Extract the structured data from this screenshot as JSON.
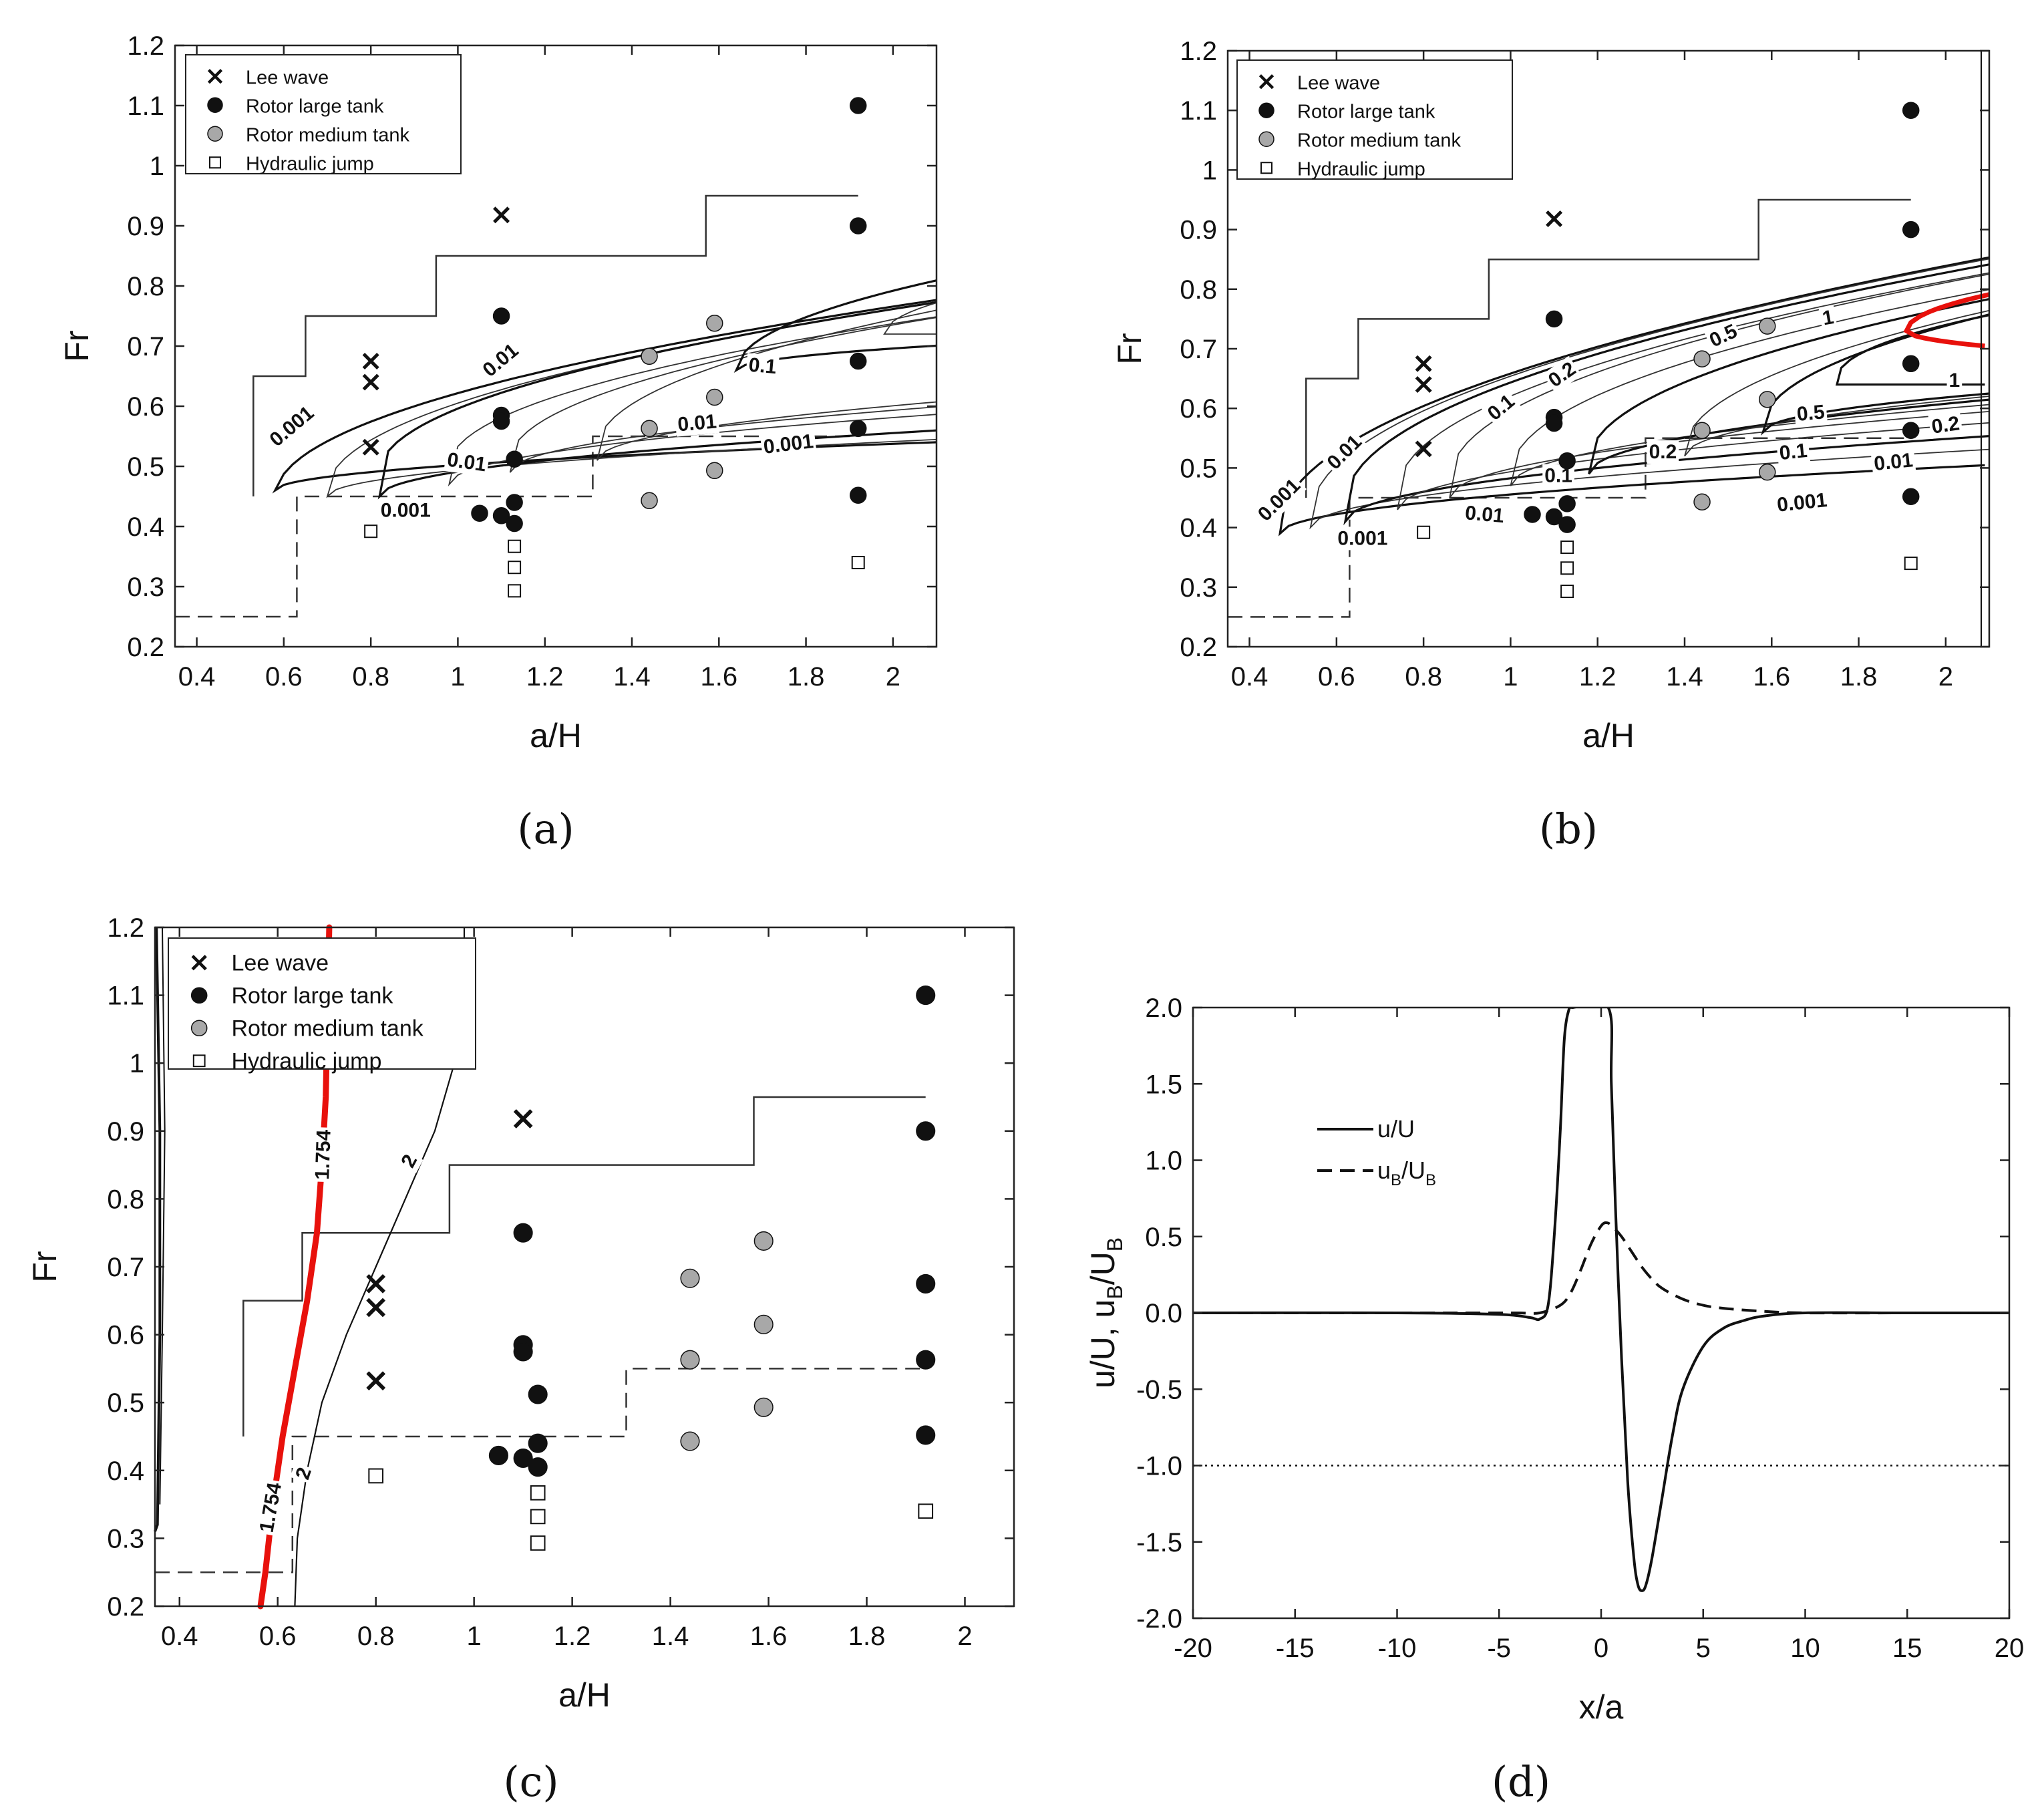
{
  "chart_data": [
    {
      "id": "a",
      "type": "scatter",
      "panel_label": "(a)",
      "xlabel": "a/H",
      "ylabel": "Fr",
      "xlim": [
        0.35,
        2.1
      ],
      "ylim": [
        0.2,
        1.2
      ],
      "xticks": [
        "0.4",
        "0.6",
        "0.8",
        "1",
        "1.2",
        "1.4",
        "1.6",
        "1.8",
        "2"
      ],
      "yticks": [
        "0.2",
        "0.3",
        "0.4",
        "0.5",
        "0.6",
        "0.7",
        "0.8",
        "0.9",
        "1",
        "1.1",
        "1.2"
      ],
      "contour_labels": [
        "0.001",
        "0.01",
        "0.1",
        "0.01",
        "0.01",
        "0.001",
        "0.001"
      ]
    },
    {
      "id": "b",
      "type": "scatter",
      "panel_label": "(b)",
      "xlabel": "a/H",
      "ylabel": "Fr",
      "xlim": [
        0.35,
        2.1
      ],
      "ylim": [
        0.2,
        1.2
      ],
      "xticks": [
        "0.4",
        "0.6",
        "0.8",
        "1",
        "1.2",
        "1.4",
        "1.6",
        "1.8",
        "2"
      ],
      "yticks": [
        "0.2",
        "0.3",
        "0.4",
        "0.5",
        "0.6",
        "0.7",
        "0.8",
        "0.9",
        "1",
        "1.1",
        "1.2"
      ],
      "contour_labels": [
        "0.001",
        "0.01",
        "0.1",
        "0.2",
        "0.5",
        "1",
        "1",
        "0.5",
        "0.2",
        "0.2",
        "0.1",
        "0.1",
        "0.01",
        "0.01",
        "0.001",
        "0.001"
      ]
    },
    {
      "id": "c",
      "type": "scatter",
      "panel_label": "(c)",
      "xlabel": "a/H",
      "ylabel": "Fr",
      "xlim": [
        0.35,
        2.1
      ],
      "ylim": [
        0.2,
        1.2
      ],
      "xticks": [
        "0.4",
        "0.6",
        "0.8",
        "1",
        "1.2",
        "1.4",
        "1.6",
        "1.8",
        "2"
      ],
      "yticks": [
        "0.2",
        "0.3",
        "0.4",
        "0.5",
        "0.6",
        "0.7",
        "0.8",
        "0.9",
        "1",
        "1.1",
        "1.2"
      ],
      "contour_labels": [
        "1.754",
        "1.754",
        "2",
        "2"
      ]
    },
    {
      "id": "d",
      "type": "line",
      "panel_label": "(d)",
      "xlabel": "x/a",
      "ylabel": "u/U, u_B/U_B",
      "xlim": [
        -20,
        20
      ],
      "ylim": [
        -2.0,
        2.0
      ],
      "xticks": [
        "-20",
        "-15",
        "-10",
        "-5",
        "0",
        "5",
        "10",
        "15",
        "20"
      ],
      "yticks": [
        "-2.0",
        "-1.5",
        "-1.0",
        "-0.5",
        "0.0",
        "0.5",
        "1.0",
        "1.5",
        "2.0"
      ],
      "series": [
        {
          "name": "u/U",
          "style": "solid",
          "x": [
            -20,
            -10,
            -5,
            -3.5,
            -3,
            -2.6,
            -2.3,
            -2,
            -1.8,
            -1.55,
            -1.4,
            0.35,
            0.5,
            0.7,
            1,
            1.3,
            1.6,
            1.8,
            2,
            2.2,
            2.5,
            3,
            3.5,
            4,
            5,
            6,
            7,
            8,
            10,
            15,
            20
          ],
          "y": [
            0,
            0,
            -0.01,
            -0.03,
            -0.04,
            0.05,
            0.5,
            1.2,
            1.8,
            2.0,
            2.0,
            2.0,
            1.5,
            0.7,
            -0.3,
            -1.1,
            -1.6,
            -1.78,
            -1.82,
            -1.78,
            -1.6,
            -1.2,
            -0.8,
            -0.5,
            -0.22,
            -0.1,
            -0.05,
            -0.02,
            0,
            0,
            0
          ]
        },
        {
          "name": "u_B/U_B",
          "style": "dashed",
          "x": [
            -20,
            -10,
            -5,
            -4,
            -3,
            -2,
            -1.5,
            -1,
            -0.5,
            0,
            0.3,
            0.6,
            1,
            1.5,
            2,
            2.5,
            3,
            4,
            5,
            6,
            8,
            10,
            15,
            20
          ],
          "y": [
            0,
            0,
            0,
            0,
            0,
            0.05,
            0.13,
            0.28,
            0.45,
            0.57,
            0.59,
            0.56,
            0.5,
            0.4,
            0.3,
            0.22,
            0.16,
            0.09,
            0.05,
            0.03,
            0.01,
            0,
            0,
            0
          ]
        },
        {
          "name": "reference",
          "style": "dotted",
          "x": [
            -20,
            20
          ],
          "y": [
            -1,
            -1
          ]
        }
      ]
    }
  ],
  "legend_abc": [
    {
      "marker": "cross",
      "label": "Lee wave"
    },
    {
      "marker": "black",
      "label": "Rotor large tank"
    },
    {
      "marker": "grey",
      "label": "Rotor medium tank"
    },
    {
      "marker": "square",
      "label": "Hydraulic jump"
    }
  ],
  "legend_d": [
    {
      "style": "solid",
      "label": "u/U"
    },
    {
      "style": "dashed",
      "label": "u",
      "sub": "B",
      "tail": "/U",
      "sub2": "B"
    }
  ],
  "ylabel_d_parts": {
    "a": "u/U, u",
    "sub1": "B",
    "b": "/U",
    "sub2": "B"
  },
  "points": {
    "lee_wave": [
      [
        0.8,
        0.675
      ],
      [
        0.8,
        0.64
      ],
      [
        0.8,
        0.532
      ],
      [
        1.1,
        0.918
      ]
    ],
    "rotor_large": [
      [
        1.1,
        0.75
      ],
      [
        1.1,
        0.585
      ],
      [
        1.1,
        0.575
      ],
      [
        1.13,
        0.512
      ],
      [
        1.05,
        0.422
      ],
      [
        1.1,
        0.418
      ],
      [
        1.13,
        0.44
      ],
      [
        1.13,
        0.405
      ],
      [
        1.92,
        1.1
      ],
      [
        1.92,
        0.9
      ],
      [
        1.92,
        0.675
      ],
      [
        1.92,
        0.563
      ],
      [
        1.92,
        0.452
      ]
    ],
    "rotor_medium": [
      [
        1.44,
        0.683
      ],
      [
        1.59,
        0.738
      ],
      [
        1.59,
        0.615
      ],
      [
        1.44,
        0.563
      ],
      [
        1.59,
        0.493
      ],
      [
        1.44,
        0.443
      ]
    ],
    "hydraulic_jump": [
      [
        0.8,
        0.392
      ],
      [
        1.13,
        0.367
      ],
      [
        1.13,
        0.332
      ],
      [
        1.13,
        0.293
      ],
      [
        1.92,
        0.34
      ]
    ]
  }
}
